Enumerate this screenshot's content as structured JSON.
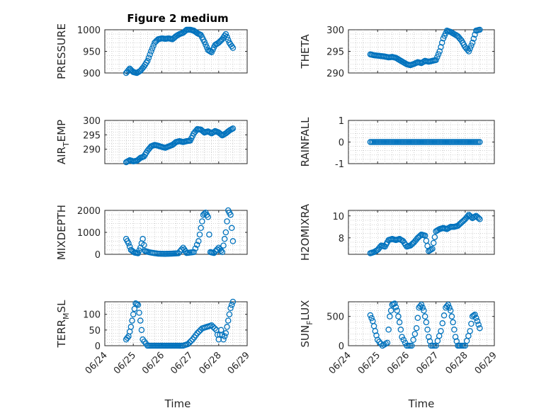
{
  "figure": {
    "title": "Figure 2 medium",
    "xlabel": "Time",
    "marker_color": "#0072BD"
  },
  "x_tick_labels": [
    "06/24",
    "06/25",
    "06/26",
    "06/27",
    "06/28",
    "06/29"
  ],
  "chart_data": [
    {
      "type": "scatter",
      "title": "Figure 2 medium",
      "xlabel": "",
      "ylabel": "PRESSURE",
      "xlim": [
        "06/24",
        "06/29"
      ],
      "ylim": [
        900,
        1000
      ],
      "yticks": [
        900,
        950,
        1000
      ],
      "grid": true,
      "x": [
        "06/24 18:00",
        "06/24 21:00",
        "06/25 00:00",
        "06/25 03:00",
        "06/25 06:00",
        "06/25 09:00",
        "06/25 12:00",
        "06/25 15:00",
        "06/25 18:00",
        "06/25 21:00",
        "06/26 00:00",
        "06/26 03:00",
        "06/26 06:00",
        "06/26 09:00",
        "06/26 12:00",
        "06/26 15:00",
        "06/26 18:00",
        "06/26 21:00",
        "06/27 00:00",
        "06/27 03:00",
        "06/27 06:00",
        "06/27 09:00",
        "06/27 12:00",
        "06/27 15:00",
        "06/27 18:00",
        "06/27 21:00",
        "06/28 00:00",
        "06/28 03:00",
        "06/28 06:00",
        "06/28 09:00",
        "06/28 12:00"
      ],
      "y": [
        900,
        910,
        902,
        900,
        905,
        915,
        928,
        950,
        970,
        978,
        980,
        979,
        980,
        978,
        985,
        990,
        993,
        1000,
        1000,
        998,
        992,
        988,
        972,
        953,
        948,
        965,
        970,
        978,
        990,
        970,
        958
      ]
    },
    {
      "type": "scatter",
      "ylabel": "THETA",
      "xlim": [
        "06/24",
        "06/29"
      ],
      "ylim": [
        290,
        300
      ],
      "yticks": [
        290,
        295,
        300
      ],
      "grid": true,
      "x": [
        "06/24 18:00",
        "06/24 21:00",
        "06/25 00:00",
        "06/25 03:00",
        "06/25 06:00",
        "06/25 09:00",
        "06/25 12:00",
        "06/25 15:00",
        "06/25 18:00",
        "06/25 21:00",
        "06/26 00:00",
        "06/26 03:00",
        "06/26 06:00",
        "06/26 09:00",
        "06/26 12:00",
        "06/26 15:00",
        "06/26 18:00",
        "06/26 21:00",
        "06/27 00:00",
        "06/27 03:00",
        "06/27 06:00",
        "06/27 09:00",
        "06/27 12:00",
        "06/27 15:00",
        "06/27 18:00",
        "06/27 21:00",
        "06/28 00:00",
        "06/28 03:00",
        "06/28 06:00",
        "06/28 09:00",
        "06/28 12:00"
      ],
      "y": [
        294.3,
        294.1,
        294.0,
        293.9,
        293.8,
        293.6,
        293.7,
        293.5,
        293.0,
        292.5,
        292.0,
        291.8,
        292.1,
        292.5,
        292.3,
        292.8,
        292.6,
        292.8,
        293.0,
        295.0,
        298.0,
        299.8,
        299.5,
        299.0,
        298.5,
        297.5,
        296.0,
        295.0,
        297.0,
        299.8,
        300.0
      ]
    },
    {
      "type": "scatter",
      "ylabel": "AIR_TEMP",
      "xlim": [
        "06/24",
        "06/29"
      ],
      "ylim": [
        285,
        300
      ],
      "yticks": [
        290,
        295,
        300
      ],
      "grid": true,
      "x": [
        "06/24 18:00",
        "06/24 21:00",
        "06/25 00:00",
        "06/25 03:00",
        "06/25 06:00",
        "06/25 09:00",
        "06/25 12:00",
        "06/25 15:00",
        "06/25 18:00",
        "06/25 21:00",
        "06/26 00:00",
        "06/26 03:00",
        "06/26 06:00",
        "06/26 09:00",
        "06/26 12:00",
        "06/26 15:00",
        "06/26 18:00",
        "06/26 21:00",
        "06/27 00:00",
        "06/27 03:00",
        "06/27 06:00",
        "06/27 09:00",
        "06/27 12:00",
        "06/27 15:00",
        "06/27 18:00",
        "06/27 21:00",
        "06/28 00:00",
        "06/28 03:00",
        "06/28 06:00",
        "06/28 09:00",
        "06/28 12:00"
      ],
      "y": [
        285.5,
        286.2,
        285.8,
        286.0,
        287.0,
        287.5,
        289.5,
        291.0,
        291.5,
        291.2,
        290.8,
        290.5,
        291.0,
        291.5,
        292.5,
        292.8,
        292.5,
        292.8,
        293.0,
        295.5,
        297.0,
        296.8,
        295.8,
        296.2,
        295.5,
        296.3,
        295.8,
        294.8,
        295.5,
        296.5,
        297.2
      ]
    },
    {
      "type": "scatter",
      "ylabel": "RAINFALL",
      "xlim": [
        "06/24",
        "06/29"
      ],
      "ylim": [
        -1,
        1
      ],
      "yticks": [
        -1,
        0,
        1
      ],
      "grid": true,
      "x": [
        "06/24 18:00",
        "06/25 00:00",
        "06/25 06:00",
        "06/25 12:00",
        "06/25 18:00",
        "06/26 00:00",
        "06/26 06:00",
        "06/26 12:00",
        "06/26 18:00",
        "06/27 00:00",
        "06/27 06:00",
        "06/27 12:00",
        "06/27 18:00",
        "06/28 00:00",
        "06/28 06:00",
        "06/28 12:00"
      ],
      "y": [
        0,
        0,
        0,
        0,
        0,
        0,
        0,
        0,
        0,
        0,
        0,
        0,
        0,
        0,
        0,
        0
      ]
    },
    {
      "type": "scatter",
      "ylabel": "MIXDEPTH",
      "xlim": [
        "06/24",
        "06/29"
      ],
      "ylim": [
        0,
        2000
      ],
      "yticks": [
        0,
        1000,
        2000
      ],
      "grid": true,
      "x": [
        "06/24 18:00",
        "06/24 20:00",
        "06/24 22:00",
        "06/25 01:00",
        "06/25 04:00",
        "06/25 06:00",
        "06/25 08:00",
        "06/25 10:00",
        "06/25 13:00",
        "06/25 17:00",
        "06/25 21:00",
        "06/26 02:00",
        "06/26 08:00",
        "06/26 14:00",
        "06/26 18:00",
        "06/26 21:00",
        "06/27 03:00",
        "06/27 07:00",
        "06/27 09:00",
        "06/27 11:00",
        "06/27 13:00",
        "06/27 15:00",
        "06/27 17:00",
        "06/27 20:00",
        "06/28 00:00",
        "06/28 03:00",
        "06/28 06:00",
        "06/28 08:00",
        "06/28 10:00",
        "06/28 12:00"
      ],
      "y": [
        700,
        500,
        200,
        80,
        50,
        300,
        700,
        150,
        100,
        60,
        30,
        20,
        30,
        50,
        300,
        60,
        100,
        600,
        1200,
        1800,
        1900,
        1700,
        100,
        60,
        300,
        100,
        1000,
        2000,
        1800,
        600
      ]
    },
    {
      "type": "scatter",
      "ylabel": "H2OMIXRA",
      "xlim": [
        "06/24",
        "06/29"
      ],
      "ylim": [
        6.5,
        10.5
      ],
      "yticks": [
        8,
        10
      ],
      "grid": true,
      "x": [
        "06/24 18:00",
        "06/24 21:00",
        "06/25 00:00",
        "06/25 03:00",
        "06/25 06:00",
        "06/25 09:00",
        "06/25 12:00",
        "06/25 15:00",
        "06/25 18:00",
        "06/25 21:00",
        "06/26 00:00",
        "06/26 03:00",
        "06/26 06:00",
        "06/26 09:00",
        "06/26 12:00",
        "06/26 15:00",
        "06/26 18:00",
        "06/26 21:00",
        "06/27 00:00",
        "06/27 03:00",
        "06/27 06:00",
        "06/27 09:00",
        "06/27 12:00",
        "06/27 15:00",
        "06/27 18:00",
        "06/27 21:00",
        "06/28 00:00",
        "06/28 03:00",
        "06/28 06:00",
        "06/28 09:00",
        "06/28 12:00"
      ],
      "y": [
        6.6,
        6.7,
        6.9,
        7.3,
        7.2,
        7.8,
        7.9,
        7.8,
        7.9,
        7.7,
        7.2,
        7.3,
        7.6,
        8.0,
        8.3,
        8.2,
        6.8,
        7.0,
        8.6,
        8.8,
        8.9,
        8.8,
        9.0,
        9.0,
        9.1,
        9.4,
        9.7,
        10.1,
        9.8,
        10.0,
        9.7
      ]
    },
    {
      "type": "scatter",
      "ylabel": "TERR_MSL",
      "xlim": [
        "06/24",
        "06/29"
      ],
      "ylim": [
        0,
        140
      ],
      "yticks": [
        0,
        50,
        100
      ],
      "grid": true,
      "x": [
        "06/24 18:00",
        "06/24 20:00",
        "06/24 22:00",
        "06/25 00:00",
        "06/25 02:00",
        "06/25 04:00",
        "06/25 06:00",
        "06/25 08:00",
        "06/25 12:00",
        "06/25 18:00",
        "06/26 00:00",
        "06/26 06:00",
        "06/26 12:00",
        "06/26 18:00",
        "06/26 22:00",
        "06/27 02:00",
        "06/27 06:00",
        "06/27 10:00",
        "06/27 14:00",
        "06/27 18:00",
        "06/27 22:00",
        "06/28 00:00",
        "06/28 02:00",
        "06/28 04:00",
        "06/28 06:00",
        "06/28 08:00",
        "06/28 10:00",
        "06/28 12:00"
      ],
      "y": [
        20,
        30,
        60,
        100,
        135,
        130,
        80,
        20,
        0,
        0,
        0,
        0,
        0,
        0,
        5,
        20,
        40,
        55,
        60,
        65,
        50,
        20,
        50,
        20,
        40,
        80,
        120,
        140
      ]
    },
    {
      "type": "scatter",
      "ylabel": "SUN_FLUX",
      "xlim": [
        "06/24",
        "06/29"
      ],
      "ylim": [
        0,
        750
      ],
      "yticks": [
        0,
        500
      ],
      "grid": true,
      "x": [
        "06/24 18:00",
        "06/24 20:00",
        "06/24 22:00",
        "06/25 00:00",
        "06/25 04:00",
        "06/25 08:00",
        "06/25 10:00",
        "06/25 12:00",
        "06/25 14:00",
        "06/25 16:00",
        "06/25 18:00",
        "06/25 20:00",
        "06/26 00:00",
        "06/26 04:00",
        "06/26 08:00",
        "06/26 10:00",
        "06/26 12:00",
        "06/26 14:00",
        "06/26 16:00",
        "06/26 18:00",
        "06/26 20:00",
        "06/27 00:00",
        "06/27 04:00",
        "06/27 08:00",
        "06/27 10:00",
        "06/27 12:00",
        "06/27 14:00",
        "06/27 16:00",
        "06/27 18:00",
        "06/27 20:00",
        "06/28 00:00",
        "06/28 04:00",
        "06/28 06:00",
        "06/28 08:00",
        "06/28 10:00",
        "06/28 12:00"
      ],
      "y": [
        520,
        420,
        250,
        100,
        0,
        50,
        500,
        700,
        720,
        600,
        400,
        150,
        0,
        0,
        300,
        650,
        700,
        600,
        400,
        150,
        0,
        0,
        250,
        650,
        700,
        600,
        400,
        150,
        0,
        0,
        0,
        250,
        500,
        530,
        420,
        300
      ]
    }
  ]
}
